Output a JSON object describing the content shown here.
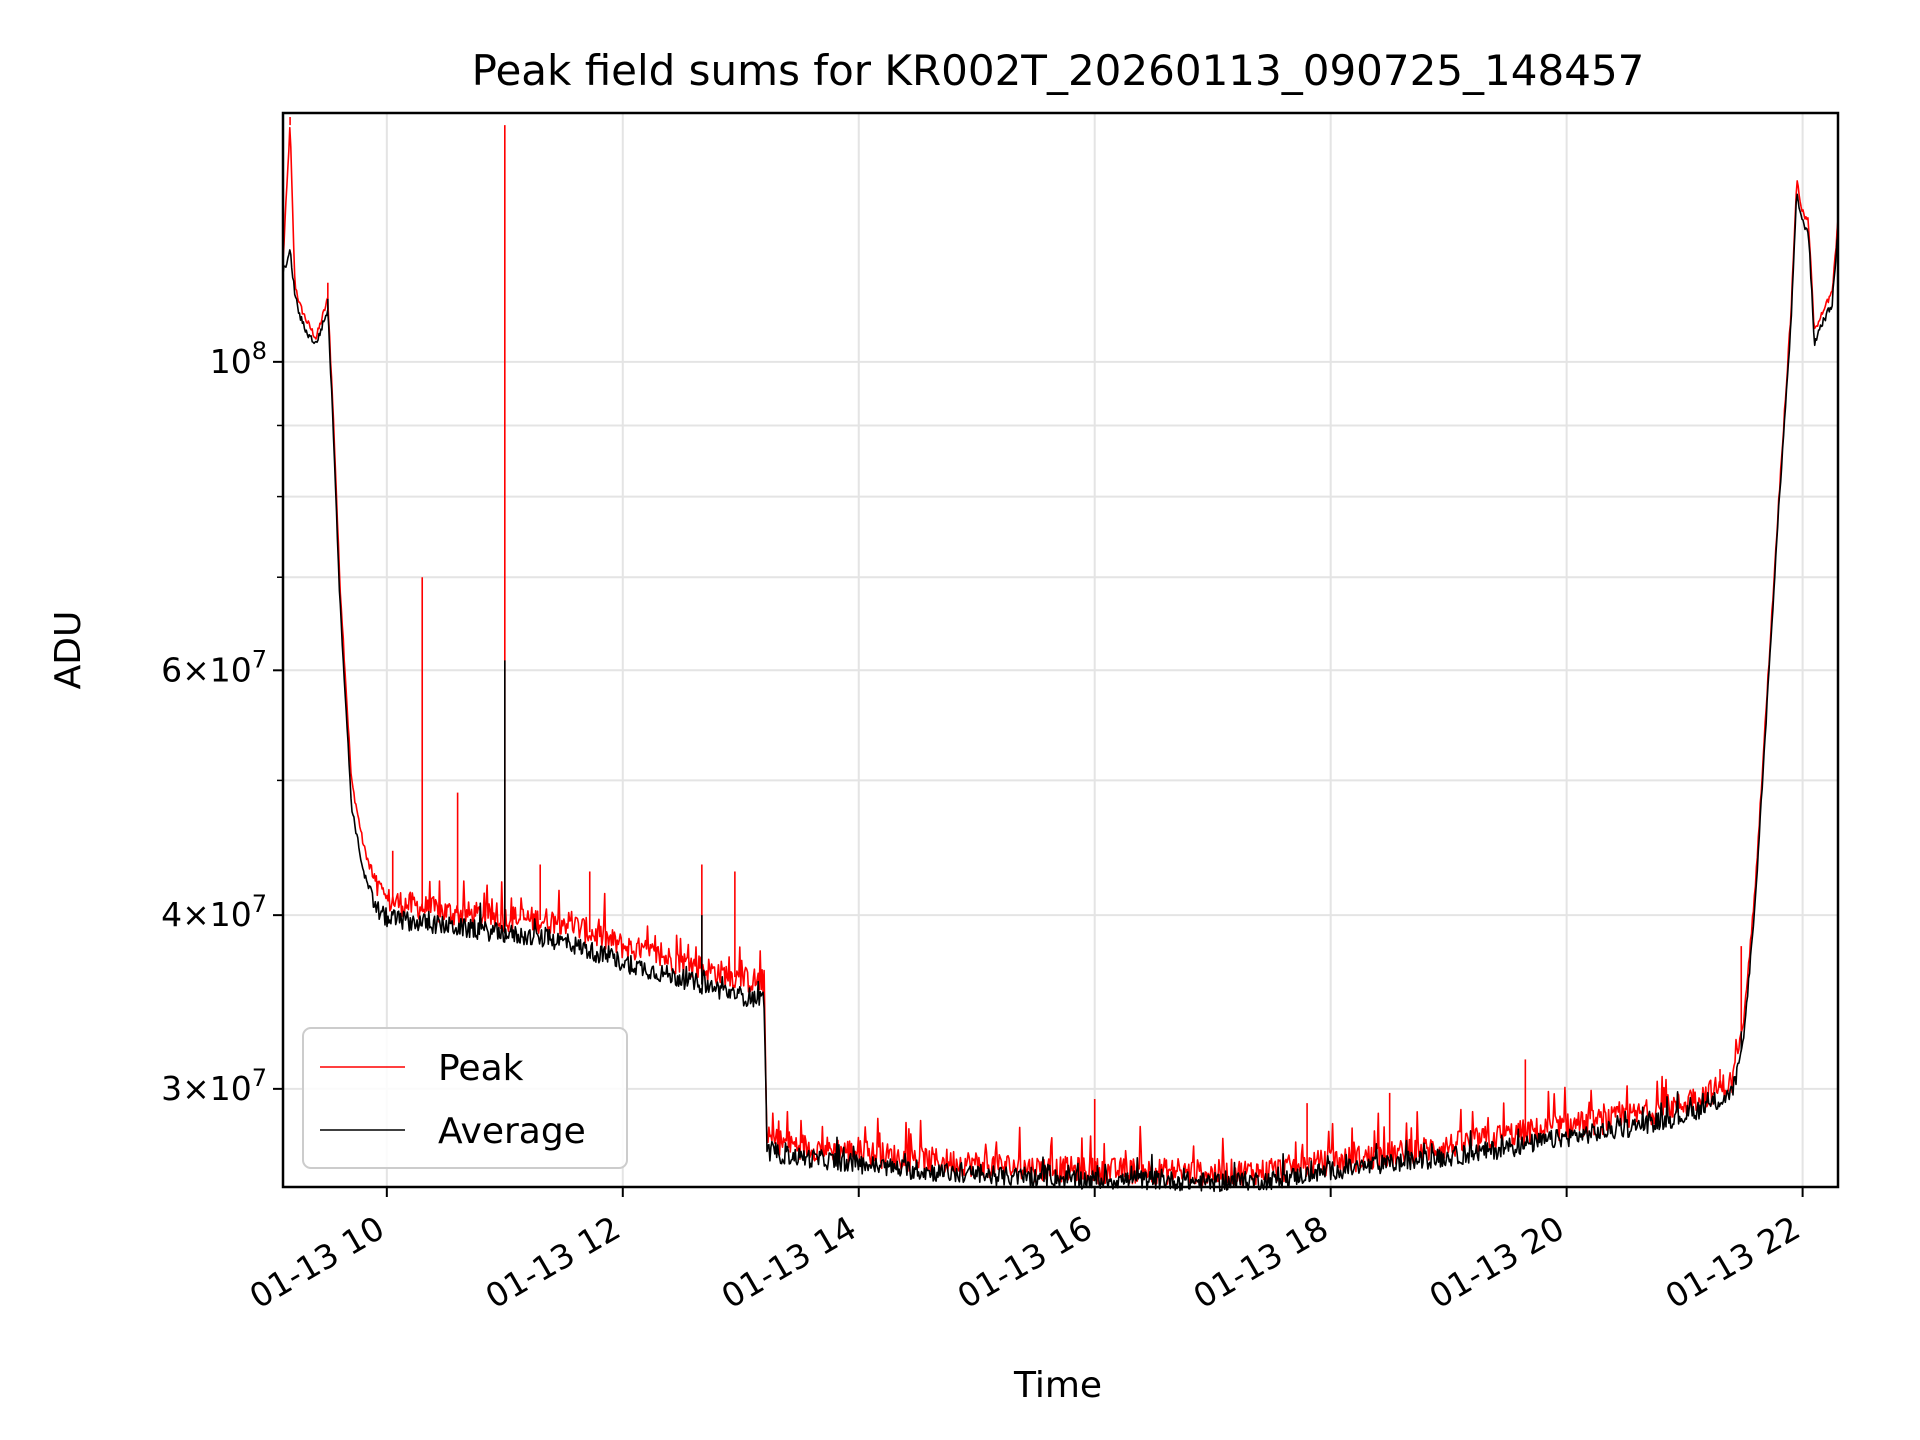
{
  "chart_data": {
    "type": "line",
    "title": "Peak field sums for KR002T_20260113_090725_148457",
    "xlabel": "Time",
    "ylabel": "ADU",
    "yscale": "log",
    "xlim_hours": [
      9.12,
      22.3
    ],
    "ylim": [
      25500000,
      151000000
    ],
    "grid": true,
    "legend_position": "lower-left",
    "x_ticks": [
      {
        "hour": 10,
        "label": "01-13 10"
      },
      {
        "hour": 12,
        "label": "01-13 12"
      },
      {
        "hour": 14,
        "label": "01-13 14"
      },
      {
        "hour": 16,
        "label": "01-13 16"
      },
      {
        "hour": 18,
        "label": "01-13 18"
      },
      {
        "hour": 20,
        "label": "01-13 20"
      },
      {
        "hour": 22,
        "label": "01-13 22"
      }
    ],
    "y_major_ticks": [
      {
        "value": 30000000,
        "mantissa": "3",
        "exp": "7"
      },
      {
        "value": 40000000,
        "mantissa": "4",
        "exp": "7"
      },
      {
        "value": 60000000,
        "mantissa": "6",
        "exp": "7"
      },
      {
        "value": 100000000,
        "mantissa": "",
        "exp": "8"
      }
    ],
    "y_minor_ticks": [
      50000000,
      70000000,
      80000000,
      90000000
    ],
    "series": [
      {
        "name": "Peak",
        "color": "#ff0000",
        "x_hours": [
          9.12,
          9.18,
          9.22,
          9.26,
          9.32,
          9.4,
          9.5,
          9.55,
          9.6,
          9.7,
          9.8,
          9.9,
          10.0,
          10.5,
          11.0,
          11.5,
          12.0,
          12.5,
          13.0,
          13.2,
          13.22,
          13.5,
          14.0,
          14.5,
          15.0,
          15.5,
          16.0,
          16.5,
          17.0,
          17.5,
          18.0,
          18.5,
          19.0,
          19.5,
          20.0,
          20.5,
          21.0,
          21.4,
          21.5,
          21.6,
          21.7,
          21.8,
          21.9,
          21.95,
          22.0,
          22.05,
          22.1,
          22.15,
          22.25,
          22.3
        ],
        "y_values": [
          118000000,
          148000000,
          114000000,
          110000000,
          107000000,
          104000000,
          111000000,
          90000000,
          70000000,
          50000000,
          45000000,
          42000000,
          41000000,
          40200000,
          39800000,
          39600000,
          38000000,
          37000000,
          36000000,
          35800000,
          27600000,
          27300000,
          27000000,
          26700000,
          26500000,
          26300000,
          26200000,
          26200000,
          26100000,
          26200000,
          26600000,
          26900000,
          27300000,
          27800000,
          28200000,
          28600000,
          29300000,
          30300000,
          33500000,
          42000000,
          58000000,
          80000000,
          108000000,
          135000000,
          128000000,
          126000000,
          105000000,
          108000000,
          112000000,
          126000000
        ],
        "spikes": [
          {
            "hour": 9.18,
            "value": 150000000
          },
          {
            "hour": 9.5,
            "value": 114000000
          },
          {
            "hour": 10.05,
            "value": 44500000
          },
          {
            "hour": 10.3,
            "value": 70000000
          },
          {
            "hour": 10.6,
            "value": 49000000
          },
          {
            "hour": 11.0,
            "value": 148000000
          },
          {
            "hour": 11.3,
            "value": 43500000
          },
          {
            "hour": 11.72,
            "value": 43000000
          },
          {
            "hour": 12.67,
            "value": 43500000
          },
          {
            "hour": 12.95,
            "value": 43000000
          },
          {
            "hour": 16.0,
            "value": 29500000
          },
          {
            "hour": 17.8,
            "value": 29300000
          },
          {
            "hour": 18.5,
            "value": 29800000
          },
          {
            "hour": 19.65,
            "value": 31500000
          },
          {
            "hour": 21.3,
            "value": 31000000
          },
          {
            "hour": 21.48,
            "value": 38000000
          }
        ]
      },
      {
        "name": "Average",
        "color": "#000000",
        "x_hours": [
          9.12,
          9.18,
          9.22,
          9.26,
          9.32,
          9.4,
          9.5,
          9.55,
          9.6,
          9.7,
          9.8,
          9.9,
          10.0,
          10.5,
          11.0,
          11.5,
          12.0,
          12.5,
          13.0,
          13.2,
          13.22,
          13.5,
          14.0,
          14.5,
          15.0,
          15.5,
          16.0,
          16.5,
          17.0,
          17.5,
          18.0,
          18.5,
          19.0,
          19.5,
          20.0,
          20.5,
          21.0,
          21.4,
          21.5,
          21.6,
          21.7,
          21.8,
          21.9,
          21.95,
          22.0,
          22.05,
          22.1,
          22.15,
          22.25,
          22.3
        ],
        "y_values": [
          116000000,
          120000000,
          112000000,
          108000000,
          105000000,
          103000000,
          109000000,
          88000000,
          68000000,
          48000000,
          43000000,
          40500000,
          39800000,
          39300000,
          38800000,
          38300000,
          37000000,
          36000000,
          35000000,
          34800000,
          27000000,
          26800000,
          26500000,
          26200000,
          26000000,
          25900000,
          25800000,
          25800000,
          25700000,
          25800000,
          26200000,
          26500000,
          26800000,
          27200000,
          27700000,
          28100000,
          28700000,
          29700000,
          32500000,
          41000000,
          57000000,
          79000000,
          106000000,
          132000000,
          126000000,
          124000000,
          103000000,
          106000000,
          110000000,
          124000000
        ],
        "spikes": [
          {
            "hour": 9.5,
            "value": 111000000
          },
          {
            "hour": 11.0,
            "value": 61000000
          },
          {
            "hour": 12.67,
            "value": 40000000
          },
          {
            "hour": 21.48,
            "value": 33000000
          }
        ]
      }
    ]
  }
}
